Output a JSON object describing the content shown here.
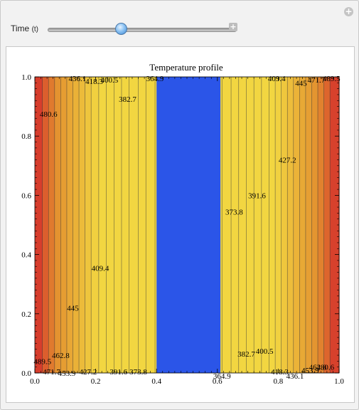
{
  "controls": {
    "time_label": "Time",
    "time_unit": "(t)",
    "add_button": "+",
    "corner_button": "+",
    "time_value_fraction": 0.39
  },
  "chart_data": {
    "type": "heatmap",
    "title": "Temperature profile",
    "xlim": [
      0,
      1
    ],
    "ylim": [
      0,
      1
    ],
    "x_ticks": [
      "0.0",
      "0.2",
      "0.4",
      "0.6",
      "0.8",
      "1.0"
    ],
    "y_ticks": [
      "0.0",
      "0.2",
      "0.4",
      "0.6",
      "0.8",
      "1.0"
    ],
    "colors": {
      "hot": "#d42b2b",
      "warm": "#e3902f",
      "yellow": "#f2d641",
      "cold": "#2b55e8",
      "contour_line": "#3a3a3a"
    },
    "cold_region": {
      "x_from": 0.4,
      "x_to": 0.61
    },
    "contour_lines_x": [
      0.025,
      0.045,
      0.065,
      0.085,
      0.105,
      0.125,
      0.145,
      0.165,
      0.185,
      0.21,
      0.235,
      0.26,
      0.285,
      0.31,
      0.34,
      0.365,
      0.395,
      0.615,
      0.645,
      0.67,
      0.695,
      0.72,
      0.745,
      0.77,
      0.79,
      0.81,
      0.83,
      0.85,
      0.87,
      0.89,
      0.91,
      0.93,
      0.95,
      0.97
    ],
    "labels": [
      {
        "text": "436.1",
        "x": 0.14,
        "y": 0.995
      },
      {
        "text": "418.3",
        "x": 0.195,
        "y": 0.985
      },
      {
        "text": "400.5",
        "x": 0.245,
        "y": 0.99
      },
      {
        "text": "364.9",
        "x": 0.395,
        "y": 0.995
      },
      {
        "text": "382.7",
        "x": 0.305,
        "y": 0.925
      },
      {
        "text": "480.6",
        "x": 0.045,
        "y": 0.875
      },
      {
        "text": "409.4",
        "x": 0.795,
        "y": 0.995
      },
      {
        "text": "445",
        "x": 0.875,
        "y": 0.98
      },
      {
        "text": "471.7",
        "x": 0.925,
        "y": 0.99
      },
      {
        "text": "489.5",
        "x": 0.975,
        "y": 0.995
      },
      {
        "text": "427.2",
        "x": 0.83,
        "y": 0.72
      },
      {
        "text": "391.6",
        "x": 0.73,
        "y": 0.6
      },
      {
        "text": "373.8",
        "x": 0.655,
        "y": 0.545
      },
      {
        "text": "409.4",
        "x": 0.215,
        "y": 0.355
      },
      {
        "text": "445",
        "x": 0.125,
        "y": 0.22
      },
      {
        "text": "489.5",
        "x": 0.025,
        "y": 0.04
      },
      {
        "text": "462.8",
        "x": 0.085,
        "y": 0.06
      },
      {
        "text": "471.7",
        "x": 0.055,
        "y": 0.005
      },
      {
        "text": "453.9",
        "x": 0.105,
        "y": 0.0
      },
      {
        "text": "427.2",
        "x": 0.175,
        "y": 0.005
      },
      {
        "text": "391.6",
        "x": 0.275,
        "y": 0.005
      },
      {
        "text": "373.8",
        "x": 0.34,
        "y": 0.005
      },
      {
        "text": "364.9",
        "x": 0.615,
        "y": -0.01
      },
      {
        "text": "382.7",
        "x": 0.695,
        "y": 0.065
      },
      {
        "text": "400.5",
        "x": 0.755,
        "y": 0.075
      },
      {
        "text": "418.3",
        "x": 0.805,
        "y": 0.005
      },
      {
        "text": "436.1",
        "x": 0.855,
        "y": -0.01
      },
      {
        "text": "453.9",
        "x": 0.905,
        "y": 0.01
      },
      {
        "text": "462.8",
        "x": 0.93,
        "y": 0.02
      },
      {
        "text": "480.6",
        "x": 0.955,
        "y": 0.02
      }
    ]
  }
}
